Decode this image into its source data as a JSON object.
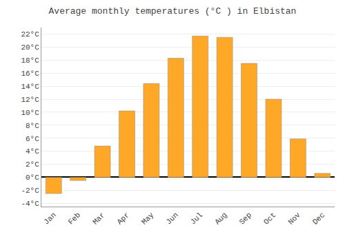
{
  "chart_data": {
    "type": "bar",
    "title": "Average monthly temperatures (°C ) in Elbistan",
    "categories": [
      "Jan",
      "Feb",
      "Mar",
      "Apr",
      "May",
      "Jun",
      "Jul",
      "Aug",
      "Sep",
      "Oct",
      "Nov",
      "Dec"
    ],
    "values": [
      -2.5,
      -0.5,
      4.8,
      10.2,
      14.4,
      18.3,
      21.7,
      21.5,
      17.5,
      12.0,
      5.9,
      0.6
    ],
    "color": "#FFA726",
    "ylim": [
      -4.5,
      23
    ],
    "yticks": [
      {
        "value": -4,
        "label": "-4°C"
      },
      {
        "value": -2,
        "label": "-2°C"
      },
      {
        "value": 0,
        "label": "0°C"
      },
      {
        "value": 2,
        "label": "2°C"
      },
      {
        "value": 4,
        "label": "4°C"
      },
      {
        "value": 6,
        "label": "6°C"
      },
      {
        "value": 8,
        "label": "8°C"
      },
      {
        "value": 10,
        "label": "10°C"
      },
      {
        "value": 12,
        "label": "12°C"
      },
      {
        "value": 14,
        "label": "14°C"
      },
      {
        "value": 16,
        "label": "16°C"
      },
      {
        "value": 18,
        "label": "18°C"
      },
      {
        "value": 20,
        "label": "20°C"
      },
      {
        "value": 22,
        "label": "22°C"
      }
    ],
    "grid": true
  }
}
